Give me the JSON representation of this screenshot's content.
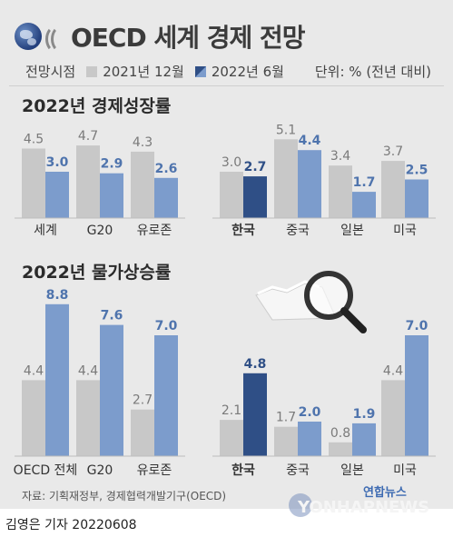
{
  "header": {
    "title": "OECD 세계 경제 전망",
    "legend_label": "전망시점",
    "legend_2021": "2021년 12월",
    "legend_2022": "2022년 6월",
    "unit": "단위: % (전년 대비)"
  },
  "colors": {
    "grey_bar": "#c8c8c8",
    "blue_bar": "#7c9ccc",
    "korea_blue": "#2f4f86",
    "panel_bg": "#e9e9e9"
  },
  "footer": {
    "source": "자료: 기획재정부, 경제협력개발기구(OECD)",
    "byline": "김영은 기자  20220608",
    "logo_kr": "연합뉴스",
    "logo_en": "YONHAPNEWS"
  },
  "chart_data": [
    {
      "type": "bar",
      "title": "2022년 경제성장률",
      "categories": [
        "세계",
        "G20",
        "유로존",
        "한국",
        "중국",
        "일본",
        "미국"
      ],
      "series": [
        {
          "name": "2021년 12월",
          "values": [
            4.5,
            4.7,
            4.3,
            3.0,
            5.1,
            3.4,
            3.7
          ]
        },
        {
          "name": "2022년 6월",
          "values": [
            3.0,
            2.9,
            2.6,
            2.7,
            4.4,
            1.7,
            2.5
          ]
        }
      ],
      "value_labels_2021": [
        "4.5",
        "4.7",
        "4.3",
        "3.0",
        "5.1",
        "3.4",
        "3.7"
      ],
      "value_labels_2022": [
        "3.0",
        "2.9",
        "2.6",
        "2.7",
        "4.4",
        "1.7",
        "2.5"
      ]
    },
    {
      "type": "bar",
      "title": "2022년 물가상승률",
      "categories": [
        "OECD 전체",
        "G20",
        "유로존",
        "한국",
        "중국",
        "일본",
        "미국"
      ],
      "series": [
        {
          "name": "2021년 12월",
          "values": [
            4.4,
            4.4,
            2.7,
            2.1,
            1.7,
            0.8,
            4.4
          ]
        },
        {
          "name": "2022년 6월",
          "values": [
            8.8,
            7.6,
            7.0,
            4.8,
            2.0,
            1.9,
            7.0
          ]
        }
      ],
      "value_labels_2021": [
        "4.4",
        "4.4",
        "2.7",
        "2.1",
        "1.7",
        "0.8",
        "4.4"
      ],
      "value_labels_2022": [
        "8.8",
        "7.6",
        "7.0",
        "4.8",
        "2.0",
        "1.9",
        "7.0"
      ]
    }
  ]
}
